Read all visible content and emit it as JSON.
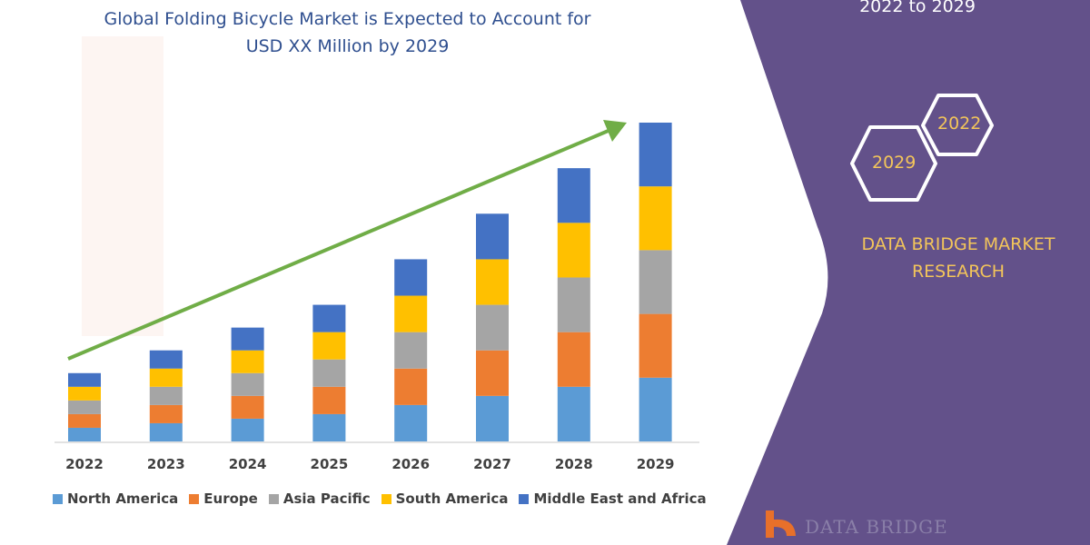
{
  "header": {
    "title_line1": "Global Folding Bicycle Market is Expected to Account for",
    "title_line2": "USD XX Million by 2029"
  },
  "sidebar": {
    "period": "2022 to 2029",
    "hex_end_year": "2029",
    "hex_start_year": "2022",
    "brand_line1": "DATA BRIDGE MARKET",
    "brand_line2": "RESEARCH",
    "logo_text": "DATA BRIDGE",
    "panel_color": "#63518a",
    "accent_color": "#f3c55a"
  },
  "chart_data": {
    "type": "bar",
    "stacked": true,
    "categories": [
      "2022",
      "2023",
      "2024",
      "2025",
      "2026",
      "2027",
      "2028",
      "2029"
    ],
    "series": [
      {
        "name": "North America",
        "color": "#5b9bd5",
        "values": [
          15,
          20,
          25,
          30,
          40,
          50,
          60,
          70
        ]
      },
      {
        "name": "Europe",
        "color": "#ed7d31",
        "values": [
          15,
          20,
          25,
          30,
          40,
          50,
          60,
          70
        ]
      },
      {
        "name": "Asia Pacific",
        "color": "#a5a5a5",
        "values": [
          15,
          20,
          25,
          30,
          40,
          50,
          60,
          70
        ]
      },
      {
        "name": "South America",
        "color": "#ffc000",
        "values": [
          15,
          20,
          25,
          30,
          40,
          50,
          60,
          70
        ]
      },
      {
        "name": "Middle East and Africa",
        "color": "#4472c4",
        "values": [
          15,
          20,
          25,
          30,
          40,
          50,
          60,
          70
        ]
      }
    ],
    "trend_arrow_color": "#70ad47",
    "y_axis_labels_shown": false,
    "grid": false,
    "legend_position": "bottom"
  }
}
